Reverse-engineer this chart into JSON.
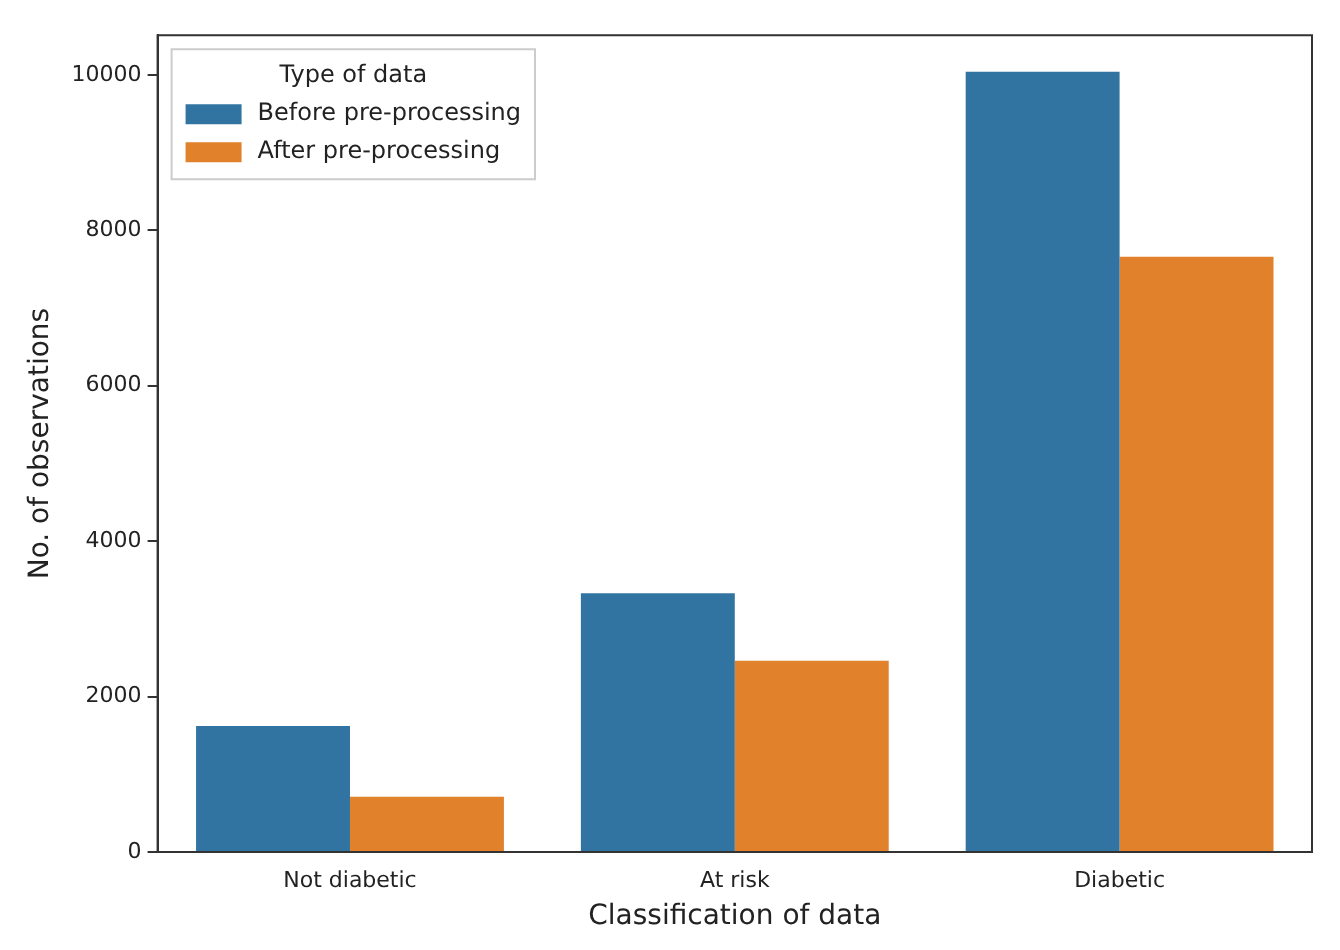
{
  "chart_data": {
    "type": "bar",
    "xlabel": "Classification of data",
    "ylabel": "No. of observations",
    "legend_title": "Type of data",
    "categories": [
      "Not diabetic",
      "At risk",
      "Diabetic"
    ],
    "series": [
      {
        "name": "Before pre-processing",
        "color": "#3274a1",
        "values": [
          1620,
          3330,
          10040
        ]
      },
      {
        "name": "After pre-processing",
        "color": "#e1812c",
        "values": [
          710,
          2460,
          7660
        ]
      }
    ],
    "ylim": [
      0,
      10510
    ],
    "yticks": [
      0,
      2000,
      4000,
      6000,
      8000,
      10000
    ],
    "grid": false,
    "legend": "top left"
  }
}
